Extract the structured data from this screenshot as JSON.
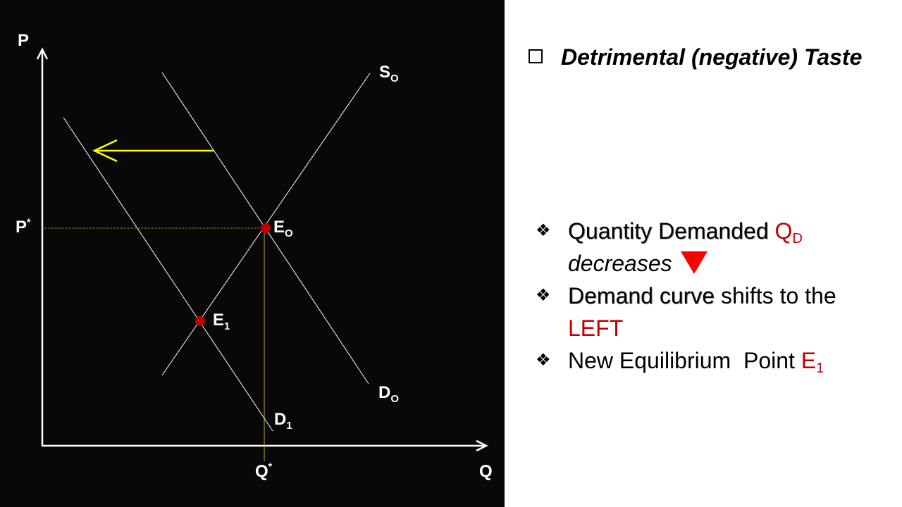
{
  "graph": {
    "y_axis_label": "P",
    "x_axis_label": "Q",
    "price_label": "P",
    "price_sup": "*",
    "quantity_label": "Q",
    "quantity_sup": "*",
    "supply_label": "S",
    "supply_sub": "O",
    "demand0_label": "D",
    "demand0_sub": "O",
    "demand1_label": "D",
    "demand1_sub": "1",
    "eq0_label": "E",
    "eq0_sub": "O",
    "eq1_label": "E",
    "eq1_sub": "1"
  },
  "heading": {
    "text": "Detrimental (negative) Taste"
  },
  "bullets": {
    "b1_a": "Quantity Demanded",
    "b1_q": "Q",
    "b1_qsub": "D",
    "b1_b": "decreases",
    "b2_a": "Demand curve",
    "b2_b": " shifts to the ",
    "b2_c": "LEFT",
    "b3_a": "New Equilibrium  Point ",
    "b3_e": "E",
    "b3_esub": "1"
  },
  "colors": {
    "panel_bg": "#080808",
    "curve": "#ffffff",
    "shift_arrow": "#ffff00",
    "point": "#c00000",
    "guide": "#c9a227",
    "accent_red": "#c00000",
    "down_triangle": "#ff0000"
  },
  "icons": {
    "heading_bullet": "checkbox-icon",
    "list_bullet": "diamond-bullet-icon",
    "decrease": "down-triangle-icon"
  }
}
